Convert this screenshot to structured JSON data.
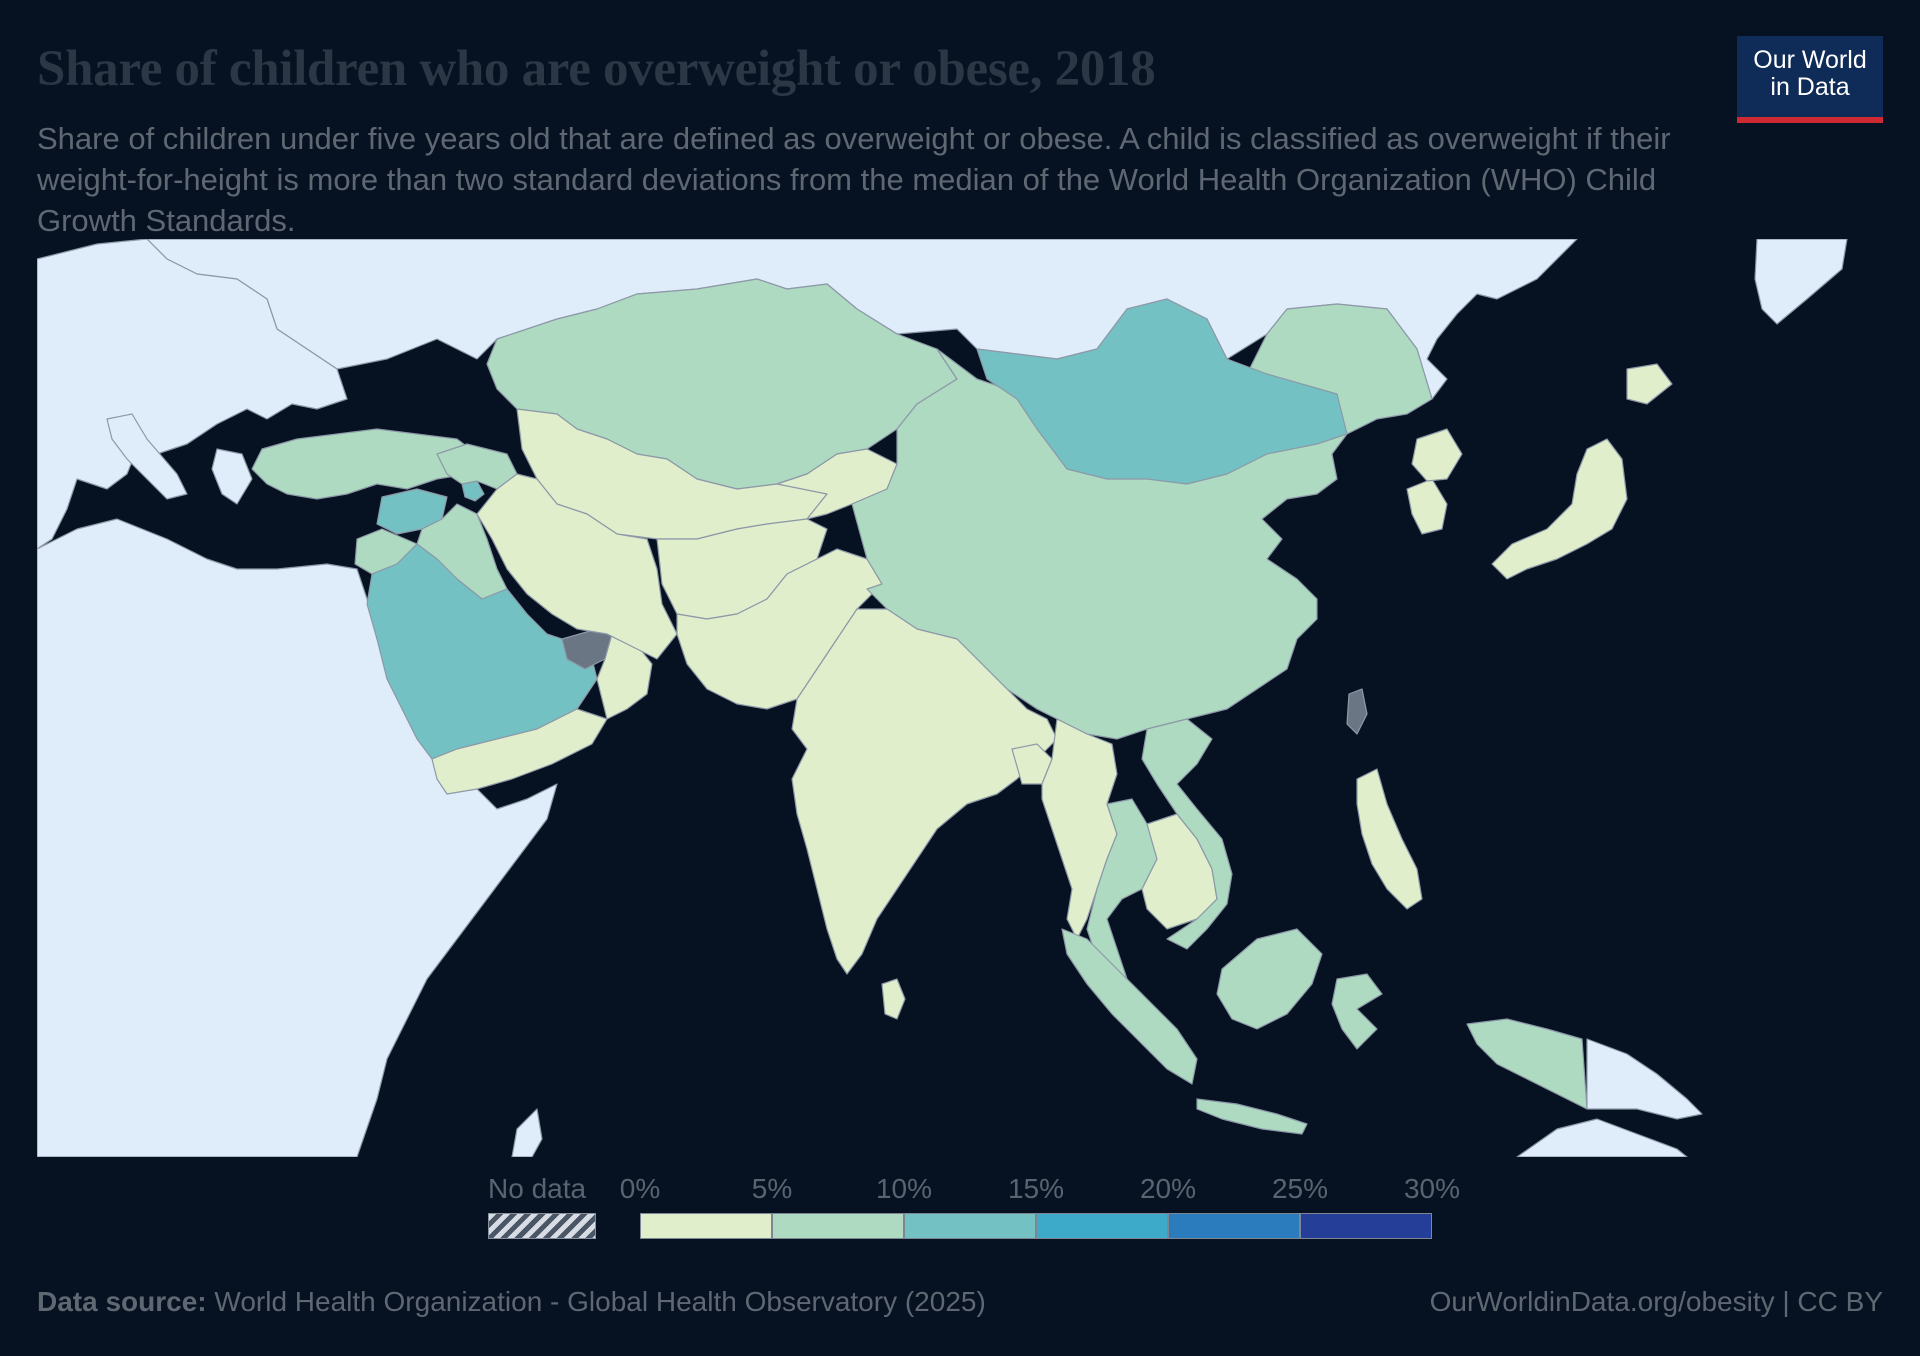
{
  "header": {
    "title": "Share of children who are overweight or obese, 2018",
    "subtitle": "Share of children under five years old that are defined as overweight or obese. A child is classified as overweight if their weight-for-height is more than two standard deviations from the median of the World Health Organization (WHO) Child Growth Standards."
  },
  "logo": {
    "line1": "Our World",
    "line2": "in Data"
  },
  "colors": {
    "background": "#061221",
    "land_outside": "#dfedfa",
    "bin_0_5": "#e0eecc",
    "bin_5_10": "#addac0",
    "bin_10_15": "#73c1c2",
    "bin_15_20": "#3eaac9",
    "bin_20_25": "#2a7cbd",
    "bin_25_30": "#253f99",
    "border": "#8d98a8"
  },
  "legend": {
    "no_data_label": "No data",
    "ticks": [
      "0%",
      "5%",
      "10%",
      "15%",
      "20%",
      "25%",
      "30%"
    ],
    "bins": [
      {
        "from": 0,
        "to": 5,
        "color": "#e0eecc"
      },
      {
        "from": 5,
        "to": 10,
        "color": "#addac0"
      },
      {
        "from": 10,
        "to": 15,
        "color": "#73c1c2"
      },
      {
        "from": 15,
        "to": 20,
        "color": "#3eaac9"
      },
      {
        "from": 20,
        "to": 25,
        "color": "#2a7cbd"
      },
      {
        "from": 25,
        "to": 30,
        "color": "#253f99"
      }
    ]
  },
  "map": {
    "region": "Asia",
    "countries": [
      {
        "name": "Kazakhstan",
        "bin": "5-10%"
      },
      {
        "name": "Mongolia",
        "bin": "10-15%"
      },
      {
        "name": "China",
        "bin": "5-10%"
      },
      {
        "name": "Russia",
        "bin": "outside-region"
      },
      {
        "name": "Iran",
        "bin": "0-5%"
      },
      {
        "name": "Afghanistan",
        "bin": "0-5%"
      },
      {
        "name": "Pakistan",
        "bin": "0-5%"
      },
      {
        "name": "India",
        "bin": "0-5%"
      },
      {
        "name": "Saudi Arabia",
        "bin": "10-15%"
      },
      {
        "name": "Yemen",
        "bin": "0-5%"
      },
      {
        "name": "Oman",
        "bin": "0-5%"
      },
      {
        "name": "United Arab Emirates",
        "bin": "no-data"
      },
      {
        "name": "Turkey",
        "bin": "5-10%"
      },
      {
        "name": "Syria",
        "bin": "10-15%"
      },
      {
        "name": "Iraq",
        "bin": "5-10%"
      },
      {
        "name": "Armenia",
        "bin": "10-15%"
      },
      {
        "name": "Myanmar",
        "bin": "0-5%"
      },
      {
        "name": "Thailand",
        "bin": "5-10%"
      },
      {
        "name": "Vietnam",
        "bin": "5-10%"
      },
      {
        "name": "Cambodia",
        "bin": "0-5%"
      },
      {
        "name": "Indonesia",
        "bin": "5-10%"
      },
      {
        "name": "Philippines",
        "bin": "0-5%"
      },
      {
        "name": "Japan",
        "bin": "0-5%"
      },
      {
        "name": "South Korea",
        "bin": "0-5%"
      },
      {
        "name": "Taiwan",
        "bin": "no-data"
      },
      {
        "name": "Papua New Guinea",
        "bin": "outside-region"
      },
      {
        "name": "Sri Lanka",
        "bin": "0-5%"
      }
    ]
  },
  "footer": {
    "source_label": "Data source:",
    "source_text": " World Health Organization - Global Health Observatory (2025)",
    "link": "OurWorldinData.org/obesity | CC BY"
  }
}
